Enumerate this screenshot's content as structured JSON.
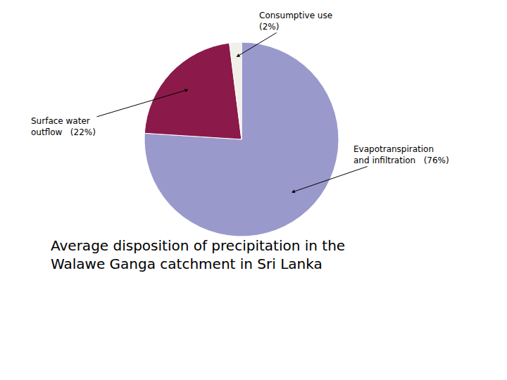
{
  "chart_data": {
    "type": "pie",
    "title": "Average disposition of precipitation in the\nWalawe Ganga catchment in Sri Lanka",
    "values": [
      76,
      22,
      2
    ],
    "colors": [
      "#9999cc",
      "#8b1a4a",
      "#f0f0e8"
    ],
    "annotations": [
      "Evapotranspiration\nand infiltration   (76%)",
      "Surface water\noutflow   (22%)",
      "Consumptive use\n(2%)"
    ]
  }
}
